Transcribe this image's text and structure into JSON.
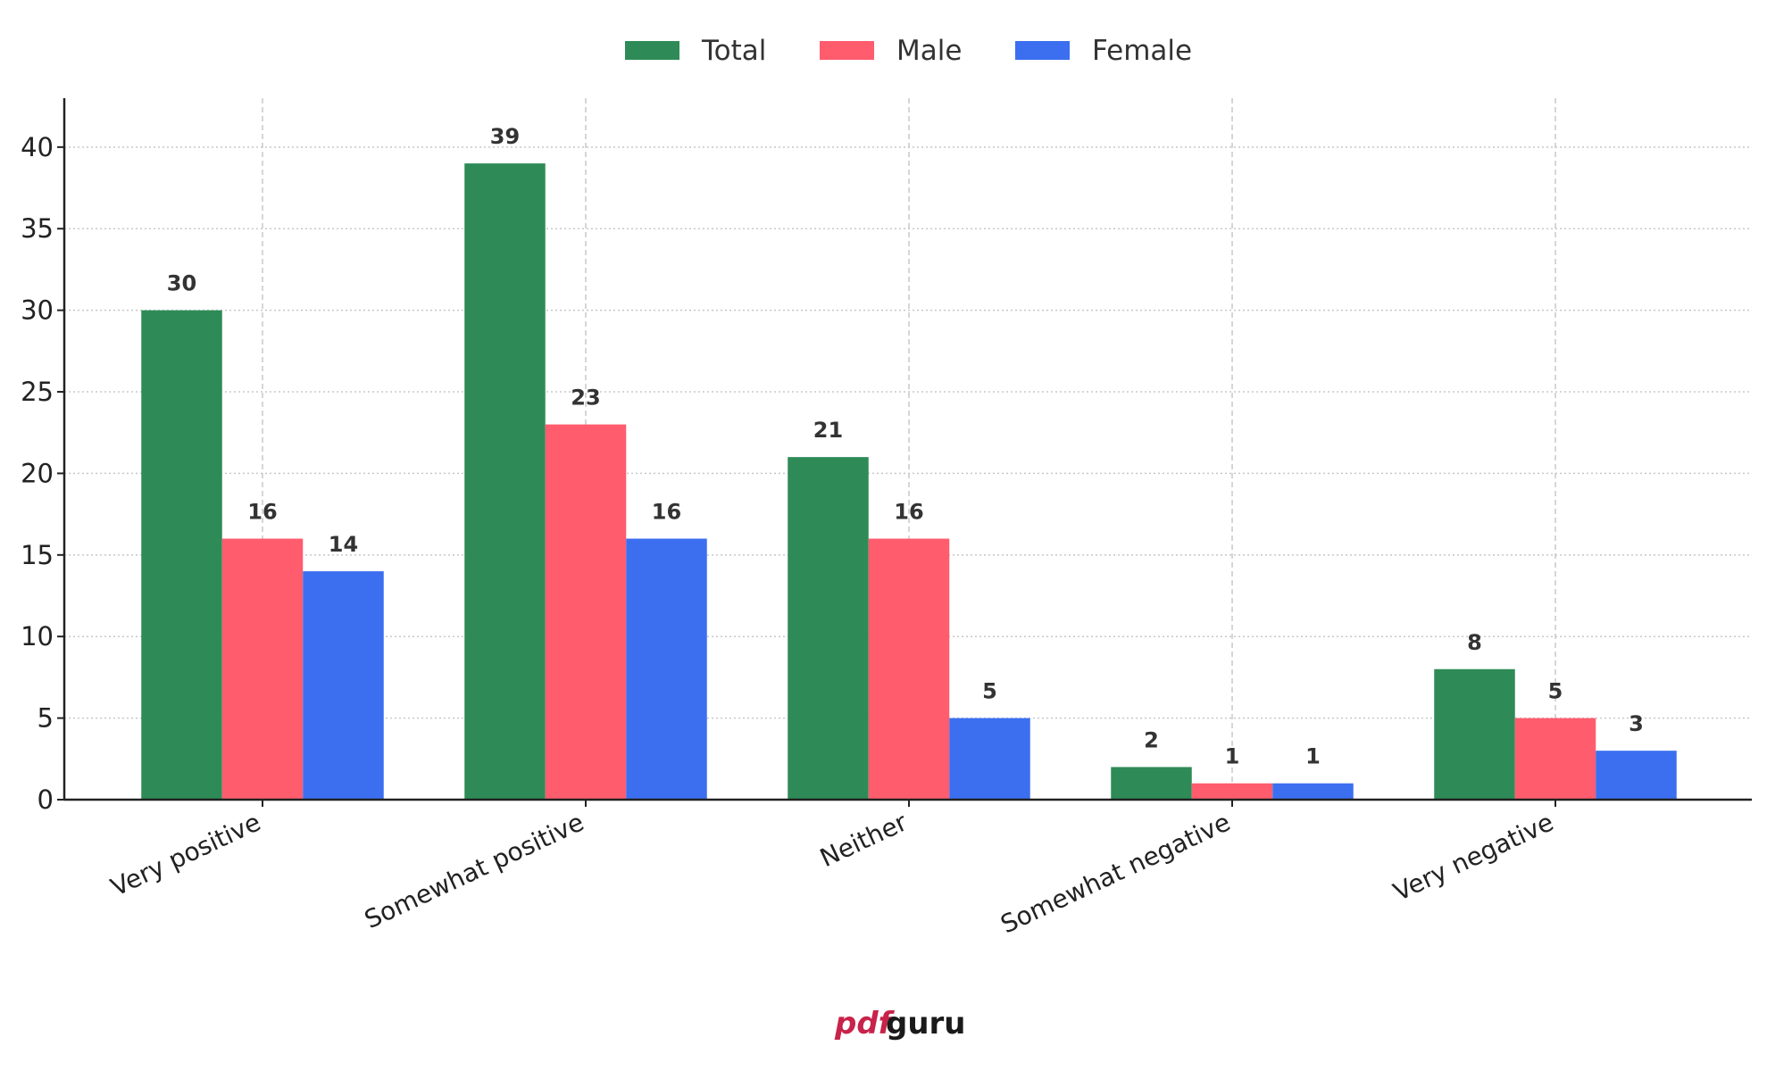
{
  "chart_data": {
    "type": "bar",
    "categories": [
      "Very positive",
      "Somewhat positive",
      "Neither",
      "Somewhat negative",
      "Very negative"
    ],
    "series": [
      {
        "name": "Total",
        "color": "#2e8b57",
        "values": [
          30,
          39,
          21,
          2,
          8
        ]
      },
      {
        "name": "Male",
        "color": "#ff5c6e",
        "values": [
          16,
          23,
          16,
          1,
          5
        ]
      },
      {
        "name": "Female",
        "color": "#3b6ff0",
        "values": [
          14,
          16,
          5,
          1,
          3
        ]
      }
    ],
    "ylim": [
      0,
      43
    ],
    "yticks": [
      0,
      5,
      10,
      15,
      20,
      25,
      30,
      35,
      40
    ],
    "grid": true,
    "legend": "top-center",
    "title": "",
    "xlabel": "",
    "ylabel": ""
  },
  "watermark": {
    "part1": "pdf",
    "part2": "guru"
  }
}
